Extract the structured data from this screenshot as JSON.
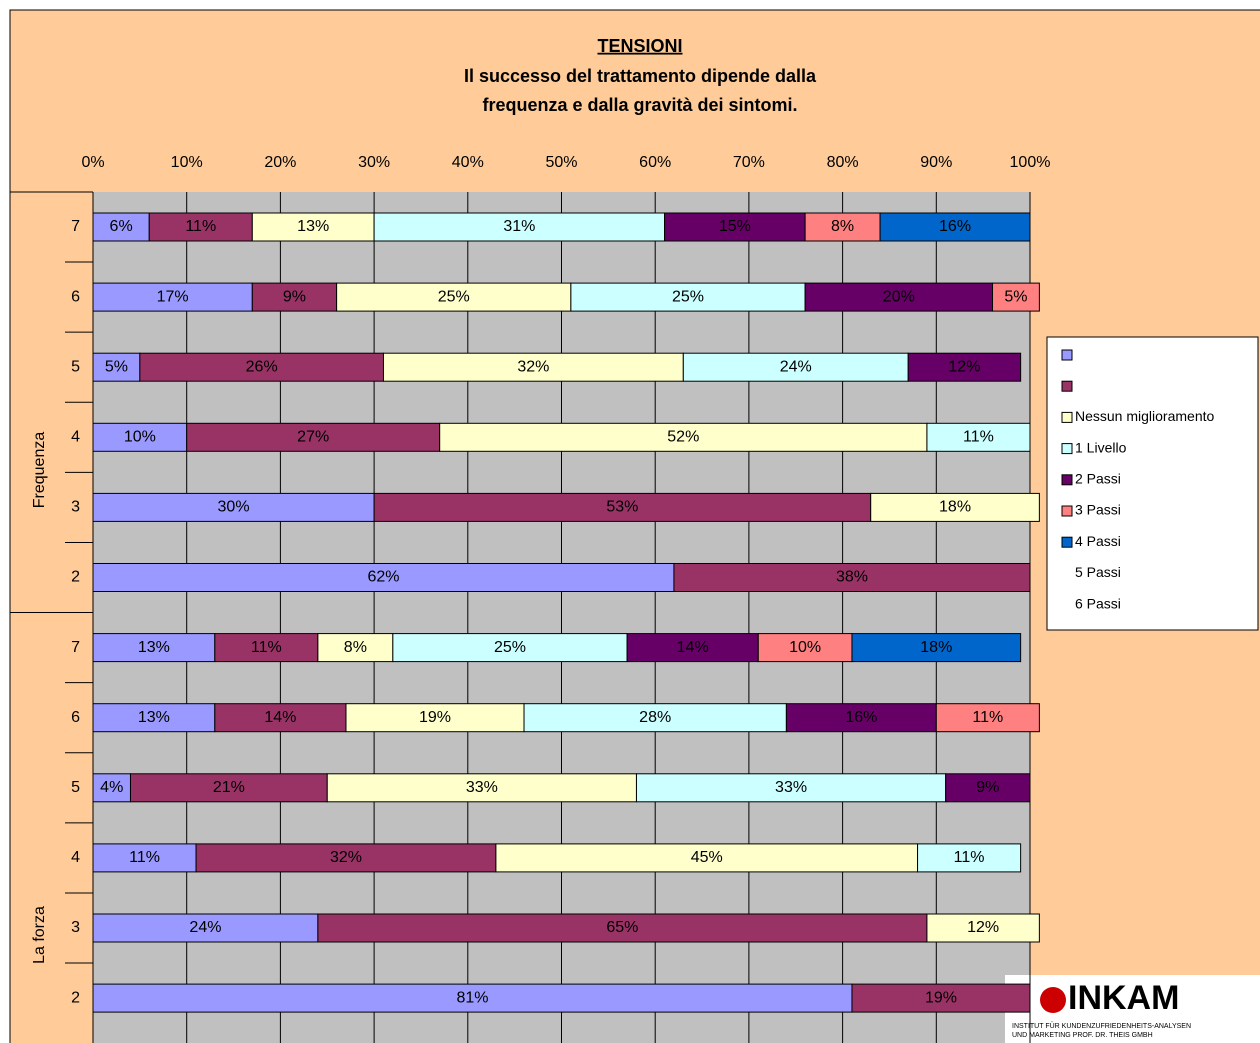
{
  "chart_data": {
    "type": "stacked-barh",
    "title": "TENSIONI",
    "subtitle": [
      "Il successo del trattamento dipende dalla",
      "frequenza e dalla gravità dei sintomi."
    ],
    "group_labels": [
      "Frequenza",
      "La forza"
    ],
    "categories": [
      "7",
      "6",
      "5",
      "4",
      "3",
      "2",
      "7",
      "6",
      "5",
      "4",
      "3",
      "2"
    ],
    "xlim": [
      0,
      100
    ],
    "xticks": [
      {
        "value": 0,
        "label": "0%"
      },
      {
        "value": 10,
        "label": "10%"
      },
      {
        "value": 20,
        "label": "20%"
      },
      {
        "value": 30,
        "label": "30%"
      },
      {
        "value": 40,
        "label": "40%"
      },
      {
        "value": 50,
        "label": "50%"
      },
      {
        "value": 60,
        "label": "60%"
      },
      {
        "value": 70,
        "label": "70%"
      },
      {
        "value": 80,
        "label": "80%"
      },
      {
        "value": 90,
        "label": "90%"
      },
      {
        "value": 100,
        "label": "100%"
      }
    ],
    "grid": true,
    "series": [
      {
        "name": null,
        "color": "#9999ff",
        "values": [
          6,
          17,
          5,
          10,
          30,
          62,
          13,
          13,
          4,
          11,
          24,
          81
        ],
        "value_labels": [
          "6%",
          "17%",
          "5%",
          "10%",
          "30%",
          "62%",
          "13%",
          "13%",
          "4%",
          "11%",
          "24%",
          "81%"
        ]
      },
      {
        "name": null,
        "color": "#993366",
        "values": [
          11,
          9,
          26,
          27,
          53,
          38,
          11,
          14,
          21,
          32,
          65,
          19
        ],
        "value_labels": [
          "11%",
          "9%",
          "26%",
          "27%",
          "53%",
          "38%",
          "11%",
          "14%",
          "21%",
          "32%",
          "65%",
          "19%"
        ]
      },
      {
        "name": "Nessun miglioramento",
        "color": "#ffffcc",
        "values": [
          13,
          25,
          32,
          52,
          18,
          null,
          8,
          19,
          33,
          45,
          12,
          null
        ],
        "value_labels": [
          "13%",
          "25%",
          "32%",
          "52%",
          "18%",
          null,
          "8%",
          "19%",
          "33%",
          "45%",
          "12%",
          null
        ]
      },
      {
        "name": "1 Livello",
        "color": "#ccffff",
        "values": [
          31,
          25,
          24,
          11,
          null,
          null,
          25,
          28,
          33,
          11,
          null,
          null
        ],
        "value_labels": [
          "31%",
          "25%",
          "24%",
          "11%",
          null,
          null,
          "25%",
          "28%",
          "33%",
          "11%",
          null,
          null
        ]
      },
      {
        "name": "2 Passi",
        "color": "#660066",
        "values": [
          15,
          20,
          12,
          null,
          null,
          null,
          14,
          16,
          9,
          null,
          null,
          null
        ],
        "value_labels": [
          "15%",
          "20%",
          "12%",
          null,
          null,
          null,
          "14%",
          "16%",
          "9%",
          null,
          null,
          null
        ]
      },
      {
        "name": "3 Passi",
        "color": "#ff8080",
        "values": [
          8,
          5,
          null,
          null,
          null,
          null,
          10,
          11,
          null,
          null,
          null,
          null
        ],
        "value_labels": [
          "8%",
          "5%",
          null,
          null,
          null,
          null,
          "10%",
          "11%",
          null,
          null,
          null,
          null
        ]
      },
      {
        "name": "4 Passi",
        "color": "#0066cc",
        "values": [
          16,
          null,
          null,
          null,
          null,
          null,
          18,
          null,
          null,
          null,
          null,
          null
        ],
        "value_labels": [
          "16%",
          null,
          null,
          null,
          null,
          null,
          "18%",
          null,
          null,
          null,
          null,
          null
        ]
      },
      {
        "name": "5 Passi",
        "color": null,
        "values": [
          null,
          null,
          null,
          null,
          null,
          null,
          null,
          null,
          null,
          null,
          null,
          null
        ]
      },
      {
        "name": "6 Passi",
        "color": null,
        "values": [
          null,
          null,
          null,
          null,
          null,
          null,
          null,
          null,
          null,
          null,
          null,
          null
        ]
      }
    ]
  },
  "logo": {
    "name": "INKAM",
    "line1": "INSTITUT FÜR KUNDENZUFRIEDENHEITS-ANALYSEN",
    "line2": "UND MARKETING PROF. DR. THEIS GMBH"
  }
}
